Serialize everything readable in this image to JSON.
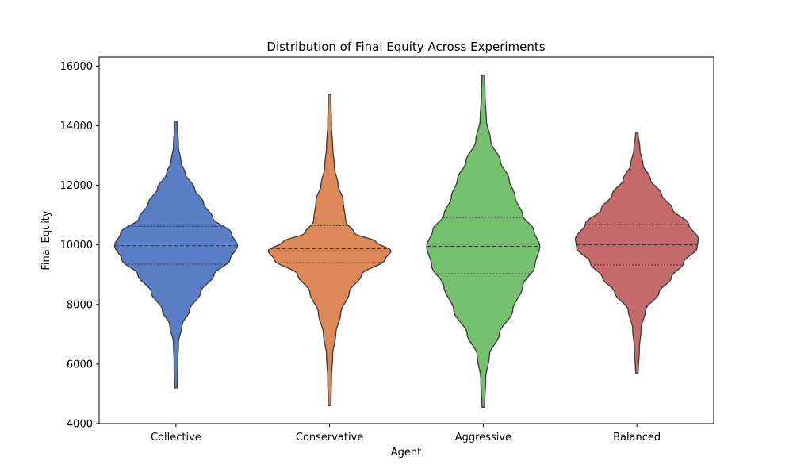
{
  "chart_data": {
    "type": "violin",
    "title": "Distribution of Final Equity Across Experiments",
    "xlabel": "Agent",
    "ylabel": "Final Equity",
    "ylim": [
      4000,
      16300
    ],
    "yticks": [
      4000,
      6000,
      8000,
      10000,
      12000,
      14000,
      16000
    ],
    "grid": false,
    "categories": [
      "Collective",
      "Conservative",
      "Aggressive",
      "Balanced"
    ],
    "series": [
      {
        "category": "Collective",
        "color": "#5a7ec6",
        "min": 5200,
        "max": 14150,
        "q1": 9350,
        "median": 9970,
        "q3": 10620,
        "profile": [
          [
            5200,
            0.02
          ],
          [
            6000,
            0.03
          ],
          [
            6700,
            0.04
          ],
          [
            7300,
            0.1
          ],
          [
            7800,
            0.22
          ],
          [
            8400,
            0.4
          ],
          [
            9000,
            0.62
          ],
          [
            9500,
            0.88
          ],
          [
            9970,
            1.0
          ],
          [
            10400,
            0.9
          ],
          [
            10900,
            0.6
          ],
          [
            11400,
            0.45
          ],
          [
            11900,
            0.3
          ],
          [
            12400,
            0.15
          ],
          [
            12800,
            0.08
          ],
          [
            13300,
            0.04
          ],
          [
            14150,
            0.02
          ]
        ]
      },
      {
        "category": "Conservative",
        "color": "#dc8858",
        "min": 4600,
        "max": 15050,
        "q1": 9400,
        "median": 9870,
        "q3": 10650,
        "profile": [
          [
            4600,
            0.02
          ],
          [
            5500,
            0.03
          ],
          [
            6300,
            0.05
          ],
          [
            7000,
            0.1
          ],
          [
            7700,
            0.18
          ],
          [
            8400,
            0.32
          ],
          [
            9000,
            0.52
          ],
          [
            9500,
            0.9
          ],
          [
            9800,
            1.0
          ],
          [
            10100,
            0.76
          ],
          [
            10400,
            0.4
          ],
          [
            10800,
            0.26
          ],
          [
            11500,
            0.22
          ],
          [
            12000,
            0.14
          ],
          [
            12600,
            0.08
          ],
          [
            13300,
            0.05
          ],
          [
            14000,
            0.03
          ],
          [
            15050,
            0.02
          ]
        ]
      },
      {
        "category": "Aggressive",
        "color": "#74c06d",
        "min": 4550,
        "max": 15700,
        "q1": 9030,
        "median": 9950,
        "q3": 10920,
        "profile": [
          [
            4550,
            0.02
          ],
          [
            5500,
            0.04
          ],
          [
            6300,
            0.1
          ],
          [
            7000,
            0.26
          ],
          [
            7800,
            0.48
          ],
          [
            8600,
            0.64
          ],
          [
            9300,
            0.84
          ],
          [
            9950,
            0.92
          ],
          [
            10500,
            0.82
          ],
          [
            11000,
            0.64
          ],
          [
            11600,
            0.52
          ],
          [
            12200,
            0.42
          ],
          [
            12800,
            0.28
          ],
          [
            13500,
            0.12
          ],
          [
            14200,
            0.05
          ],
          [
            15000,
            0.03
          ],
          [
            15700,
            0.02
          ]
        ]
      },
      {
        "category": "Balanced",
        "color": "#c66b6b",
        "min": 5700,
        "max": 13750,
        "q1": 9330,
        "median": 10000,
        "q3": 10680,
        "profile": [
          [
            5700,
            0.02
          ],
          [
            6500,
            0.04
          ],
          [
            7200,
            0.07
          ],
          [
            7800,
            0.14
          ],
          [
            8400,
            0.36
          ],
          [
            8900,
            0.56
          ],
          [
            9400,
            0.76
          ],
          [
            9900,
            0.98
          ],
          [
            10200,
            1.0
          ],
          [
            10700,
            0.84
          ],
          [
            11200,
            0.58
          ],
          [
            11700,
            0.4
          ],
          [
            12200,
            0.22
          ],
          [
            12700,
            0.1
          ],
          [
            13200,
            0.05
          ],
          [
            13750,
            0.02
          ]
        ]
      }
    ]
  }
}
